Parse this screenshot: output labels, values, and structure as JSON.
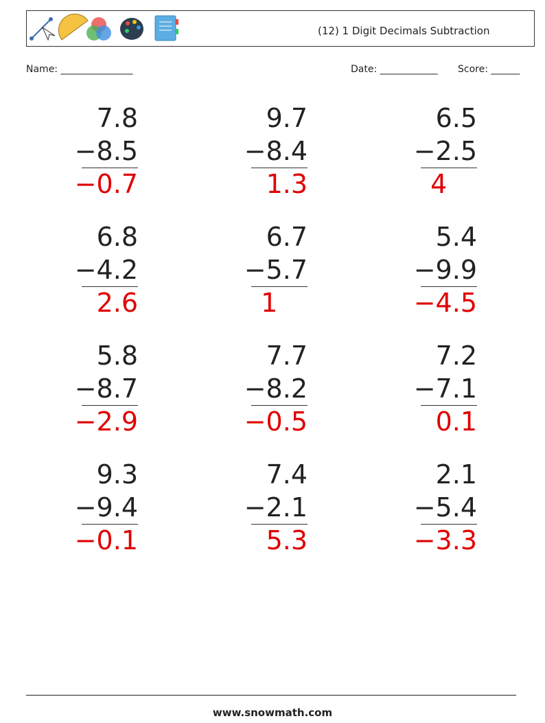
{
  "header": {
    "title": "(12) 1 Digit Decimals Subtraction"
  },
  "fields": {
    "name": "Name: _______________",
    "date": "Date: ____________",
    "score": "Score: ______"
  },
  "problems": [
    {
      "top": "7.8",
      "bottom": "−8.5",
      "answer": "−0.7"
    },
    {
      "top": "9.7",
      "bottom": "−8.4",
      "answer": "1.3"
    },
    {
      "top": "6.5",
      "bottom": "−2.5",
      "answer": "4"
    },
    {
      "top": "6.8",
      "bottom": "−4.2",
      "answer": "2.6"
    },
    {
      "top": "6.7",
      "bottom": "−5.7",
      "answer": "1"
    },
    {
      "top": "5.4",
      "bottom": "−9.9",
      "answer": "−4.5"
    },
    {
      "top": "5.8",
      "bottom": "−8.7",
      "answer": "−2.9"
    },
    {
      "top": "7.7",
      "bottom": "−8.2",
      "answer": "−0.5"
    },
    {
      "top": "7.2",
      "bottom": "−7.1",
      "answer": "0.1"
    },
    {
      "top": "9.3",
      "bottom": "−9.4",
      "answer": "−0.1"
    },
    {
      "top": "7.4",
      "bottom": "−2.1",
      "answer": "5.3"
    },
    {
      "top": "2.1",
      "bottom": "−5.4",
      "answer": "−3.3"
    }
  ],
  "footer": "www.snowmath.com"
}
